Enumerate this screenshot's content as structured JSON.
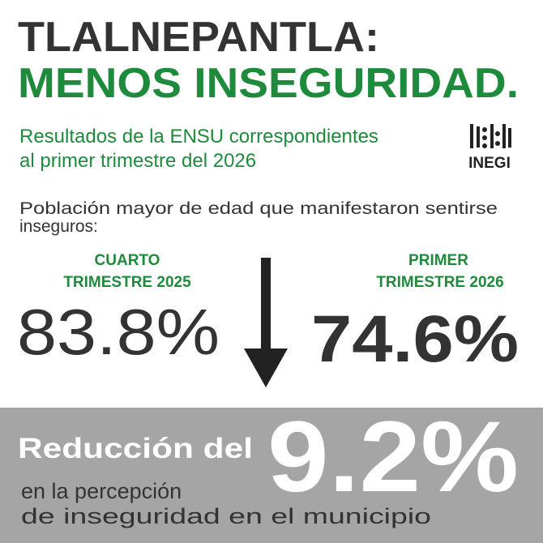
{
  "header": {
    "title": "TLALNEPANTLA:",
    "headline": "MENOS INSEGURIDAD.",
    "subtitle": [
      "Resultados de la ENSU correspondientes",
      "al primer trimestre del 2026"
    ],
    "logo": "INEGI"
  },
  "question": [
    "Población mayor de edad que manifestaron sentirse",
    "inseguros:"
  ],
  "before": {
    "label": [
      "CUARTO",
      "TRIMESTRE 2025"
    ],
    "value": "83.8%"
  },
  "after": {
    "label": [
      "PRIMER",
      "TRIMESTRE 2026"
    ],
    "value": "74.6%"
  },
  "summary": {
    "lead": "Reducción del",
    "value": "9.2%",
    "text": [
      "en la percepción",
      "de inseguridad en el municipio"
    ]
  }
}
